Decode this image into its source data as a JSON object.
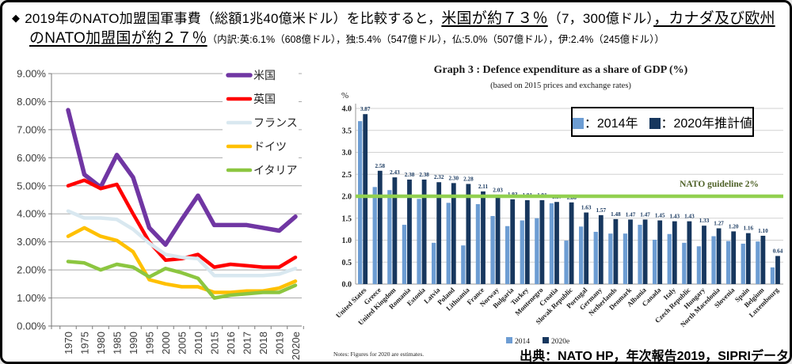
{
  "header": {
    "bullet": "◆",
    "seg1": "2019年のNATO加盟国軍事費（総額1兆40億米ドル）を比較すると，",
    "seg2_underline": "米国が約７３％",
    "seg3": "（7，300億ドル）",
    "seg4_underline": "，カナダ及び欧州のNATO加盟国が約２７％",
    "seg5_small": "（内訳:英:6.1%（608億ドル），独:5.4%（547億ドル），仏:5.0%（507億ドル），伊:2.4%（245億ドル））"
  },
  "colors": {
    "us_purple": "#7036A3",
    "uk_red": "#FF0000",
    "france_paleblue": "#D9E8F0",
    "germany_orange": "#FFC000",
    "italy_green": "#8CC640",
    "bar_2014_blue": "#6D9DD3",
    "bar_2020_navy": "#17375E",
    "guideline_green": "#92D050"
  },
  "bar_chart": {
    "title": "Graph 3 : Defence expenditure as a share of GDP (%)",
    "subtitle": "(based on 2015 prices and exchange rates)",
    "unit": "%",
    "legend_2014": "：2014年",
    "legend_2020": "：2020年推計値",
    "guideline_label": "NATO guideline 2%",
    "mini_legend_2014": "2014",
    "mini_legend_2020": "2020e",
    "notes": "Notes: Figures for 2020 are estimates.",
    "source": "出典：NATO HP，年次報告2019，SIPRIデータ"
  },
  "chart_data": [
    {
      "type": "line",
      "title": "",
      "ylabel": "",
      "ylim": [
        0,
        9
      ],
      "ytick_step": 1,
      "ytick_suffix": ".00%",
      "grid": true,
      "legend_position": "right",
      "categories": [
        "1970",
        "1975",
        "1980",
        "1985",
        "1990",
        "1995",
        "2000",
        "2005",
        "2010",
        "2015",
        "2016",
        "2017",
        "2018",
        "2019",
        "2020e"
      ],
      "series": [
        {
          "name": "米国",
          "color": "#7036A3",
          "width": 5.5,
          "values": [
            7.7,
            5.4,
            4.95,
            6.1,
            5.3,
            3.5,
            2.9,
            3.8,
            4.65,
            3.6,
            3.6,
            3.6,
            3.5,
            3.4,
            3.9
          ]
        },
        {
          "name": "英国",
          "color": "#FF0000",
          "width": 4.5,
          "values": [
            5.0,
            5.2,
            4.9,
            5.05,
            4.0,
            3.0,
            2.35,
            2.4,
            2.55,
            2.1,
            2.2,
            2.15,
            2.1,
            2.1,
            2.45
          ]
        },
        {
          "name": "フランス",
          "color": "#D9E8F0",
          "width": 4.5,
          "values": [
            4.1,
            3.85,
            3.85,
            3.8,
            3.45,
            2.95,
            2.55,
            2.45,
            2.4,
            1.8,
            1.8,
            1.8,
            1.8,
            1.85,
            2.05
          ]
        },
        {
          "name": "ドイツ",
          "color": "#FFC000",
          "width": 4.5,
          "values": [
            3.2,
            3.5,
            3.2,
            3.05,
            2.65,
            1.65,
            1.5,
            1.4,
            1.4,
            1.2,
            1.2,
            1.25,
            1.25,
            1.35,
            1.6
          ]
        },
        {
          "name": "イタリア",
          "color": "#8CC640",
          "width": 4.5,
          "values": [
            2.3,
            2.25,
            2.0,
            2.2,
            2.1,
            1.75,
            2.05,
            1.9,
            1.7,
            1.0,
            1.1,
            1.15,
            1.2,
            1.2,
            1.45
          ]
        }
      ]
    },
    {
      "type": "bar",
      "title": "Graph 3 : Defence expenditure as a share of GDP (%)",
      "subtitle": "(based on 2015 prices and exchange rates)",
      "ylabel": "%",
      "ylim": [
        0,
        4
      ],
      "ytick_step": 0.5,
      "grid": true,
      "guideline": {
        "value": 2.0,
        "label": "NATO guideline 2%",
        "color": "#92D050"
      },
      "categories": [
        "United States",
        "Greece",
        "United Kingdom",
        "Romania",
        "Estonia",
        "Latvia",
        "Poland",
        "Lithuania",
        "France",
        "Norway",
        "Bulgaria",
        "Turkey",
        "Montenegro",
        "Croatia",
        "Slovak Republic",
        "Portugal",
        "Germany",
        "Netherlands",
        "Denmark",
        "Albania",
        "Canada",
        "Italy",
        "Czech Republic",
        "Hungary",
        "North Macedonia",
        "Slovenia",
        "Spain",
        "Belgium",
        "Luxembourg"
      ],
      "series": [
        {
          "name": "2014",
          "color": "#6D9DD3",
          "show_labels": false,
          "values": [
            3.71,
            2.21,
            2.14,
            1.35,
            1.94,
            0.94,
            1.85,
            0.88,
            1.82,
            1.55,
            1.32,
            1.45,
            1.5,
            1.84,
            0.99,
            1.31,
            1.19,
            1.15,
            1.15,
            1.35,
            1.01,
            1.14,
            0.94,
            0.86,
            1.09,
            0.98,
            0.92,
            0.97,
            0.38
          ]
        },
        {
          "name": "2020e",
          "color": "#17375E",
          "show_labels": true,
          "values": [
            3.87,
            2.58,
            2.43,
            2.38,
            2.38,
            2.32,
            2.3,
            2.28,
            2.11,
            2.03,
            1.93,
            1.91,
            1.91,
            1.87,
            1.86,
            1.63,
            1.57,
            1.48,
            1.47,
            1.47,
            1.45,
            1.43,
            1.43,
            1.33,
            1.27,
            1.2,
            1.16,
            1.1,
            0.64
          ]
        }
      ]
    }
  ]
}
